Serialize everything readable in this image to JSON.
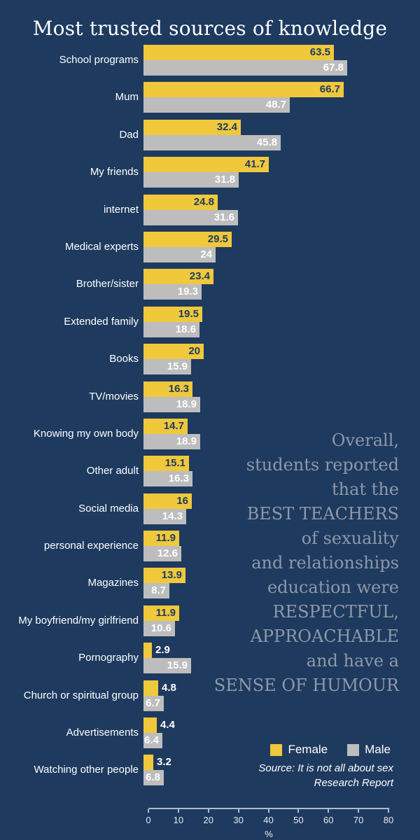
{
  "title": "Most trusted sources of knowledge",
  "chart_data": {
    "type": "bar",
    "orientation": "horizontal",
    "title": "Most trusted sources of knowledge",
    "categories": [
      "School programs",
      "Mum",
      "Dad",
      "My friends",
      "internet",
      "Medical experts",
      "Brother/sister",
      "Extended family",
      "Books",
      "TV/movies",
      "Knowing my own body",
      "Other adult",
      "Social media",
      "personal experience",
      "Magazines",
      "My boyfriend/my girlfriend",
      "Pornography",
      "Church or spiritual group",
      "Advertisements",
      "Watching other people"
    ],
    "series": [
      {
        "name": "Female",
        "color": "#EFC83C",
        "values": [
          63.5,
          66.7,
          32.4,
          41.7,
          24.8,
          29.5,
          23.4,
          19.5,
          20,
          16.3,
          14.7,
          15.1,
          16,
          11.9,
          13.9,
          11.9,
          2.9,
          4.8,
          4.4,
          3.2
        ]
      },
      {
        "name": "Male",
        "color": "#BDBDBD",
        "values": [
          67.8,
          48.7,
          45.8,
          31.8,
          31.6,
          24,
          19.3,
          18.6,
          15.9,
          18.9,
          18.9,
          16.3,
          14.3,
          12.6,
          8.7,
          10.6,
          15.9,
          6.7,
          6.4,
          6.8
        ]
      }
    ],
    "xlabel": "%",
    "xlim": [
      0,
      80
    ],
    "x_ticks": [
      0,
      10,
      20,
      30,
      40,
      50,
      60,
      70,
      80
    ],
    "grid": false,
    "legend_position": "bottom-right"
  },
  "legend": {
    "female_label": "Female",
    "male_label": "Male"
  },
  "annotation": {
    "quote": "Overall,\nstudents reported\nthat the\nBEST TEACHERS\nof sexuality\nand relationships\neducation were\nRESPECTFUL,\nAPPROACHABLE\nand have a\nSENSE OF HUMOUR"
  },
  "source": {
    "text": "Source: It is not all about sex\nResearch Report"
  },
  "colors": {
    "background": "#1E3A5F",
    "female_bar": "#EFC83C",
    "male_bar": "#BDBDBD",
    "female_value_text": "#1E3A5F",
    "male_value_text": "#FFFFFF",
    "outside_value_text": "#FFFFFF",
    "quote_text": "#8E99A8",
    "axis": "#AEBBC9"
  }
}
